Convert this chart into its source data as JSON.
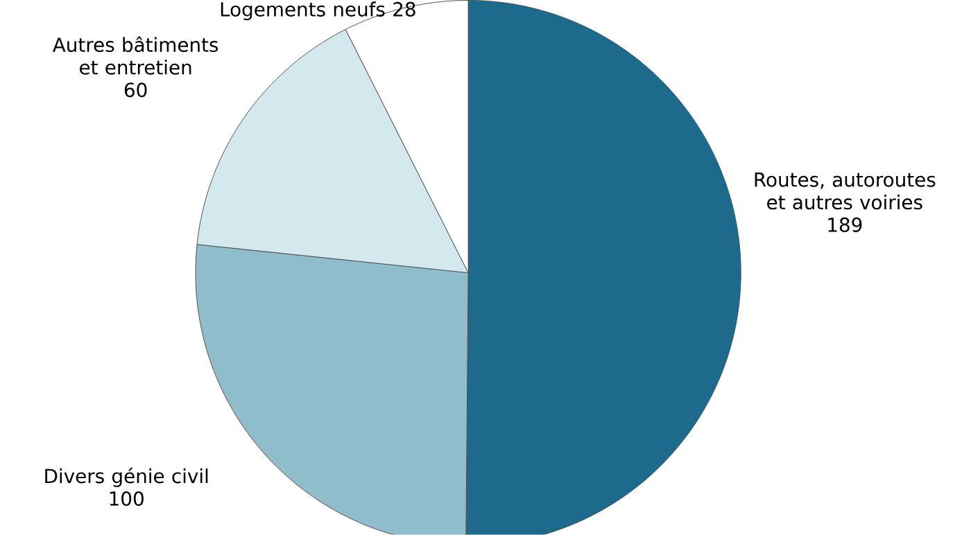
{
  "chart_data": {
    "type": "pie",
    "categories": [
      "Routes, autoroutes et autres voiries",
      "Divers génie civil",
      "Autres bâtiments et entretien",
      "Logements neufs"
    ],
    "values": [
      189,
      100,
      60,
      28
    ],
    "colors": [
      "#1d6a8c",
      "#8fbdcc",
      "#d3e9ee",
      "#ffffff"
    ],
    "data_labels": true
  }
}
